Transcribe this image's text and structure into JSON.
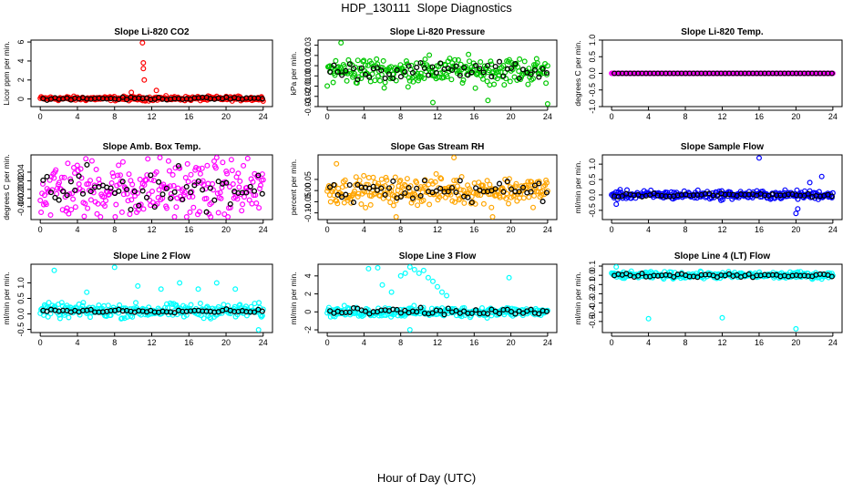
{
  "figure": {
    "title": "HDP_130111  Slope Diagnostics",
    "xlabel": "Hour of Day (UTC)"
  },
  "chart_data": [
    {
      "type": "scatter",
      "title": "Slope Li-820 CO2",
      "ylabel": "Licor ppm per min.",
      "color": "#ff0000",
      "xlim": [
        -1,
        25
      ],
      "ylim": [
        -0.8,
        6.2
      ],
      "yticks": [
        0,
        2,
        4,
        6
      ],
      "ytick_labels": [
        "0",
        "2",
        "4",
        "6"
      ],
      "center": 0.05,
      "spread": 0.22,
      "highlight_spread": 0.12,
      "outliers": [
        [
          11.0,
          6.0
        ],
        [
          11.1,
          3.8
        ],
        [
          11.1,
          3.2
        ],
        [
          11.2,
          2.0
        ],
        [
          12.5,
          0.9
        ],
        [
          9.8,
          0.7
        ]
      ]
    },
    {
      "type": "scatter",
      "title": "Slope Li-820 Pressure",
      "ylabel": "kPa per min.",
      "color": "#00c800",
      "xlim": [
        -1,
        25
      ],
      "ylim": [
        -0.03,
        0.035
      ],
      "yticks": [
        -0.03,
        -0.02,
        -0.01,
        0,
        0.01,
        0.02,
        0.03
      ],
      "ytick_labels": [
        "-0.03",
        "-0.02",
        "-0.01",
        "0.00",
        "0.01",
        "0.02",
        "0.03"
      ],
      "center": 0.005,
      "spread": 0.013,
      "highlight_spread": 0.008,
      "outliers": [
        [
          1.5,
          0.033
        ],
        [
          17.5,
          -0.024
        ],
        [
          24.0,
          -0.028
        ],
        [
          11.5,
          -0.026
        ]
      ]
    },
    {
      "type": "scatter",
      "title": "Slope Li-820 Temp.",
      "ylabel": "degrees C per min.",
      "color": "#ff00ff",
      "xlim": [
        -1,
        25
      ],
      "ylim": [
        -1.0,
        1.0
      ],
      "yticks": [
        -1.0,
        -0.5,
        0,
        0.5,
        1.0
      ],
      "ytick_labels": [
        "-1.0",
        "-0.5",
        "0.0",
        "0.5",
        "1.0"
      ],
      "center": 0.0,
      "spread": 0.0,
      "highlight_spread": 0.0,
      "outliers": []
    },
    {
      "type": "scatter",
      "title": "Slope Amb. Box Temp.",
      "ylabel": "degrees C per min.",
      "color": "#ff00ff",
      "xlim": [
        -1,
        25
      ],
      "ylim": [
        -0.07,
        0.08
      ],
      "yticks": [
        -0.04,
        -0.02,
        0,
        0.02,
        0.04
      ],
      "ytick_labels": [
        "-0.04",
        "-0.02",
        "0.00",
        "0.02",
        "0.04"
      ],
      "center": 0.0,
      "spread": 0.07,
      "highlight_spread": 0.045,
      "outliers": []
    },
    {
      "type": "scatter",
      "title": "Slope Gas Stream RH",
      "ylabel": "percent per min.",
      "color": "#ffa500",
      "xlim": [
        -1,
        25
      ],
      "ylim": [
        -0.13,
        0.16
      ],
      "yticks": [
        -0.1,
        -0.05,
        0,
        0.05
      ],
      "ytick_labels": [
        "-0.10",
        "-0.05",
        "0.00",
        "0.05"
      ],
      "center": 0.0,
      "spread": 0.06,
      "highlight_spread": 0.05,
      "outliers": [
        [
          13.8,
          0.15
        ],
        [
          1.0,
          0.12
        ],
        [
          18.0,
          -0.12
        ],
        [
          7.5,
          -0.12
        ]
      ]
    },
    {
      "type": "scatter",
      "title": "Slope Sample Flow",
      "ylabel": "ml/min per min.",
      "color": "#0000ff",
      "xlim": [
        -1,
        25
      ],
      "ylim": [
        -0.8,
        1.3
      ],
      "yticks": [
        -0.5,
        0,
        0.5,
        1.0
      ],
      "ytick_labels": [
        "-0.5",
        "0.0",
        "0.5",
        "1.0"
      ],
      "center": 0.0,
      "spread": 0.14,
      "highlight_spread": 0.06,
      "outliers": [
        [
          16.0,
          1.2
        ],
        [
          20.0,
          -0.6
        ],
        [
          20.2,
          -0.45
        ],
        [
          22.8,
          0.6
        ],
        [
          21.5,
          0.4
        ],
        [
          0.5,
          -0.3
        ]
      ]
    },
    {
      "type": "scatter",
      "title": "Slope Line 2 Flow",
      "ylabel": "ml/min per min.",
      "color": "#00ffff",
      "xlim": [
        -1,
        25
      ],
      "ylim": [
        -0.6,
        1.6
      ],
      "yticks": [
        -0.5,
        0,
        0.5,
        1.0
      ],
      "ytick_labels": [
        "-0.5",
        "0.0",
        "0.5",
        "1.0"
      ],
      "center": 0.1,
      "spread": 0.22,
      "highlight_spread": 0.05,
      "outliers": [
        [
          1.5,
          1.4
        ],
        [
          8.0,
          1.5
        ],
        [
          10.5,
          0.9
        ],
        [
          15.0,
          1.0
        ],
        [
          19.0,
          1.0
        ],
        [
          21.0,
          0.8
        ],
        [
          5.0,
          0.7
        ],
        [
          23.5,
          -0.55
        ],
        [
          13.0,
          0.8
        ],
        [
          17.0,
          0.8
        ]
      ]
    },
    {
      "type": "scatter",
      "title": "Slope Line 3 Flow",
      "ylabel": "ml/min per min.",
      "color": "#00ffff",
      "xlim": [
        -1,
        25
      ],
      "ylim": [
        -2.3,
        5.3
      ],
      "yticks": [
        -2,
        0,
        2,
        4
      ],
      "ytick_labels": [
        "-2",
        "0",
        "2",
        "4"
      ],
      "center": 0.0,
      "spread": 0.55,
      "highlight_spread": 0.4,
      "outliers": [
        [
          4.5,
          4.8
        ],
        [
          5.5,
          4.9
        ],
        [
          8.0,
          4.0
        ],
        [
          8.5,
          4.3
        ],
        [
          9.0,
          5.0
        ],
        [
          9.5,
          4.7
        ],
        [
          10.0,
          4.3
        ],
        [
          10.5,
          4.6
        ],
        [
          11.0,
          3.8
        ],
        [
          11.5,
          3.4
        ],
        [
          12.0,
          2.8
        ],
        [
          12.5,
          2.2
        ],
        [
          13.0,
          1.8
        ],
        [
          7.0,
          2.2
        ],
        [
          6.0,
          3.0
        ],
        [
          9.0,
          -2.0
        ],
        [
          19.8,
          3.8
        ]
      ]
    },
    {
      "type": "scatter",
      "title": "Slope Line 4 (LT) Flow",
      "ylabel": "ml/min per min.",
      "color": "#00ffff",
      "xlim": [
        -1,
        25
      ],
      "ylim": [
        -0.62,
        0.12
      ],
      "yticks": [
        -0.5,
        -0.4,
        -0.3,
        -0.2,
        -0.1,
        0,
        0.1
      ],
      "ytick_labels": [
        "-0.5",
        "-0.4",
        "-0.3",
        "-0.2",
        "-0.1",
        "0.0",
        "0.1"
      ],
      "center": 0.0,
      "spread": 0.035,
      "highlight_spread": 0.02,
      "outliers": [
        [
          4.0,
          -0.47
        ],
        [
          12.0,
          -0.46
        ],
        [
          20.0,
          -0.58
        ],
        [
          0.5,
          0.1
        ]
      ]
    }
  ],
  "xticks": [
    0,
    4,
    8,
    12,
    16,
    20,
    24
  ],
  "xtick_labels": [
    "0",
    "4",
    "8",
    "12",
    "16",
    "20",
    "24"
  ],
  "highlight_color": "#000000"
}
